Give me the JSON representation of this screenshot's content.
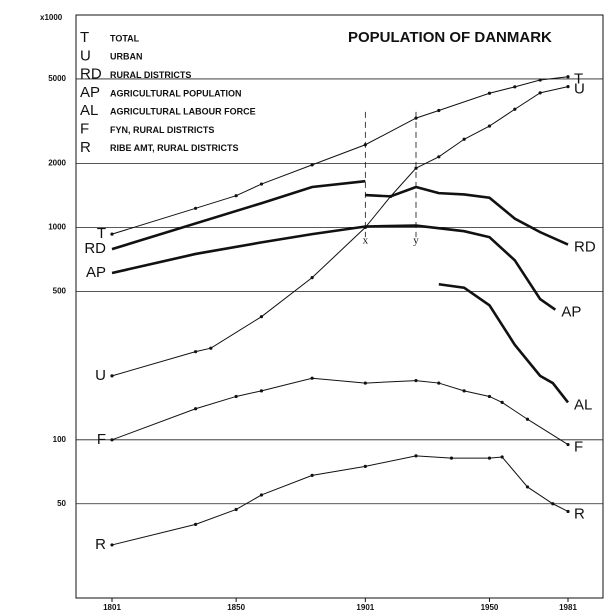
{
  "chart_data": {
    "type": "line",
    "title": "POPULATION OF DANMARK",
    "y_unit_label": "x1000",
    "log_scale": true,
    "grid": true,
    "markers_color": "#111",
    "xlim": [
      1801,
      1981
    ],
    "xticks": [
      1801,
      1850,
      1901,
      1950,
      1981
    ],
    "ylim": [
      18,
      10000
    ],
    "yticks": [
      50,
      100,
      500,
      1000,
      2000,
      5000
    ],
    "annotations": [
      {
        "text": "x",
        "x": 1901
      },
      {
        "text": "y",
        "x": 1921
      }
    ],
    "series": [
      {
        "code": "T",
        "name": "TOTAL",
        "color": "#111",
        "thick": false,
        "markers": true,
        "x": [
          1801,
          1834,
          1850,
          1860,
          1880,
          1901,
          1921,
          1930,
          1950,
          1960,
          1970,
          1981
        ],
        "values": [
          930,
          1230,
          1410,
          1600,
          1970,
          2450,
          3270,
          3550,
          4280,
          4590,
          4940,
          5120
        ]
      },
      {
        "code": "U",
        "name": "URBAN",
        "color": "#111",
        "thick": false,
        "markers": true,
        "x": [
          1801,
          1834,
          1840,
          1860,
          1880,
          1901,
          1911,
          1921,
          1930,
          1940,
          1950,
          1960,
          1970,
          1981
        ],
        "values": [
          200,
          260,
          270,
          380,
          580,
          1000,
          1400,
          1900,
          2150,
          2600,
          3000,
          3600,
          4300,
          4600
        ]
      },
      {
        "code": "RD",
        "name": "RURAL DISTRICTS",
        "color": "#111",
        "thick": true,
        "markers": false,
        "x": [
          1801,
          1860,
          1880,
          1901,
          1901,
          1901,
          1911,
          1921,
          1930,
          1940,
          1950,
          1960,
          1970,
          1981
        ],
        "values": [
          790,
          1300,
          1550,
          1650,
          null,
          1420,
          1400,
          1550,
          1450,
          1430,
          1380,
          1100,
          950,
          830
        ]
      },
      {
        "code": "AP",
        "name": "AGRICULTURAL POPULATION",
        "color": "#111",
        "thick": true,
        "markers": false,
        "x": [
          1801,
          1834,
          1860,
          1880,
          1901,
          1921,
          1940,
          1950,
          1960,
          1970,
          1976
        ],
        "values": [
          610,
          750,
          850,
          930,
          1010,
          1020,
          960,
          900,
          700,
          460,
          410
        ]
      },
      {
        "code": "AL",
        "name": "AGRICULTURAL LABOUR FORCE",
        "color": "#111",
        "thick": true,
        "markers": false,
        "x": [
          1930,
          1940,
          1950,
          1960,
          1970,
          1975,
          1981
        ],
        "values": [
          540,
          520,
          430,
          280,
          200,
          185,
          150
        ]
      },
      {
        "code": "F",
        "name": "FYN, RURAL DISTRICTS",
        "color": "#111",
        "thick": false,
        "markers": true,
        "x": [
          1801,
          1834,
          1850,
          1860,
          1880,
          1901,
          1921,
          1930,
          1940,
          1950,
          1955,
          1965,
          1981
        ],
        "values": [
          100,
          140,
          160,
          170,
          195,
          185,
          190,
          185,
          170,
          160,
          150,
          125,
          95
        ]
      },
      {
        "code": "R",
        "name": "RIBE AMT, RURAL DISTRICTS",
        "color": "#111",
        "thick": false,
        "markers": true,
        "x": [
          1801,
          1834,
          1850,
          1860,
          1880,
          1901,
          1921,
          1935,
          1950,
          1955,
          1965,
          1975,
          1981
        ],
        "values": [
          32,
          40,
          47,
          55,
          68,
          75,
          84,
          82,
          82,
          83,
          60,
          50,
          46
        ]
      }
    ]
  }
}
